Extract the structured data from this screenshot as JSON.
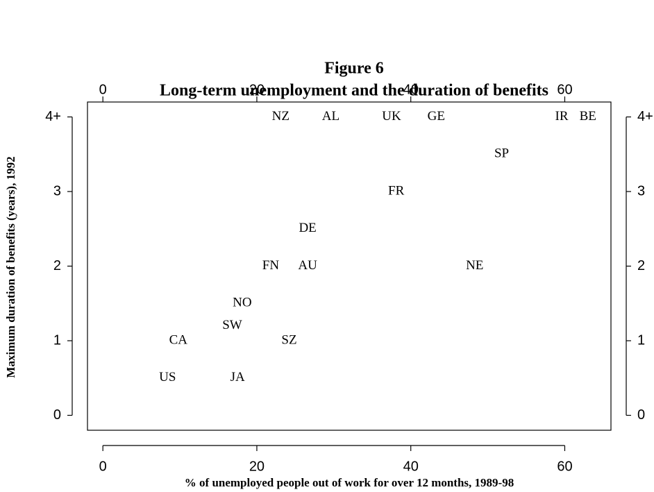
{
  "chart_data": {
    "type": "scatter",
    "title": "Figure 6",
    "subtitle": "Long-term unemployment and the duration of benefits",
    "x_label": "% of unemployed people out of work for over 12 months, 1989-98",
    "y_label": "Maximum duration of benefits (years), 1992",
    "labels": [
      "NZ",
      "AL",
      "UK",
      "GE",
      "IR",
      "BE",
      "SP",
      "FR",
      "DE",
      "FN",
      "AU",
      "NE",
      "NO",
      "SW",
      "CA",
      "SZ",
      "US",
      "JA"
    ],
    "x": [
      23.1,
      29.6,
      37.5,
      43.3,
      59.6,
      63,
      51.8,
      38.1,
      26.6,
      21.8,
      26.6,
      48.3,
      18.1,
      16.8,
      9.8,
      24.2,
      8.4,
      17.5
    ],
    "values": [
      4,
      4,
      4,
      4,
      4,
      4,
      3.5,
      3,
      2.5,
      2,
      2,
      2,
      1.5,
      1.2,
      1,
      1,
      0.5,
      0.5
    ],
    "xlim": [
      -2,
      66
    ],
    "ylim": [
      -0.2,
      4.2
    ],
    "xticks": [
      0,
      20,
      40,
      60
    ],
    "yticks": [
      0,
      1,
      2,
      3,
      {
        "value": 4,
        "label": "4+"
      }
    ]
  }
}
